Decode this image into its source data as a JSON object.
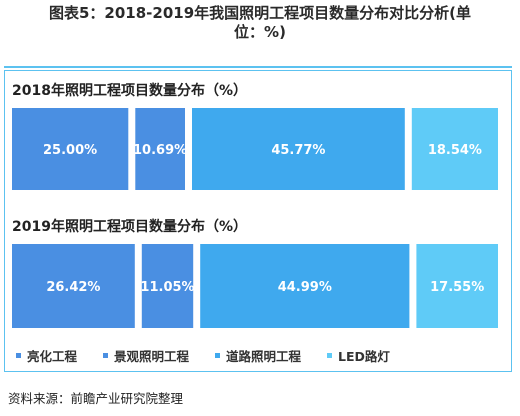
{
  "figure_title": {
    "line1": "图表5：2018-2019年我国照明工程项目数量分布对比分析(单",
    "line2": "位：%)"
  },
  "source": "资料来源：前瞻产业研究院整理",
  "colors": {
    "panel_border": "#5cc2f0",
    "label_text": "#ffffff"
  },
  "chart_data": [
    {
      "type": "treemap-strip",
      "title": "2018年照明工程项目数量分布（%）",
      "series": [
        {
          "name": "亮化工程",
          "value": 25.0,
          "label": "25.00%",
          "color": "#4a8fe2"
        },
        {
          "name": "景观照明工程",
          "value": 10.69,
          "label": "10.69%",
          "color": "#4a8fe2"
        },
        {
          "name": "道路照明工程",
          "value": 45.77,
          "label": "45.77%",
          "color": "#3fa9ee"
        },
        {
          "name": "LED路灯",
          "value": 18.54,
          "label": "18.54%",
          "color": "#5fcbf7"
        }
      ]
    },
    {
      "type": "treemap-strip",
      "title": "2019年照明工程项目数量分布（%）",
      "series": [
        {
          "name": "亮化工程",
          "value": 26.42,
          "label": "26.42%",
          "color": "#4a8fe2"
        },
        {
          "name": "景观照明工程",
          "value": 11.05,
          "label": "11.05%",
          "color": "#4a8fe2"
        },
        {
          "name": "道路照明工程",
          "value": 44.99,
          "label": "44.99%",
          "color": "#3fa9ee"
        },
        {
          "name": "LED路灯",
          "value": 17.55,
          "label": "17.55%",
          "color": "#5fcbf7"
        }
      ]
    }
  ],
  "legend": [
    {
      "name": "亮化工程",
      "color": "#4a8fe2"
    },
    {
      "name": "景观照明工程",
      "color": "#4a8fe2"
    },
    {
      "name": "道路照明工程",
      "color": "#3fa9ee"
    },
    {
      "name": "LED路灯",
      "color": "#5fcbf7"
    }
  ]
}
